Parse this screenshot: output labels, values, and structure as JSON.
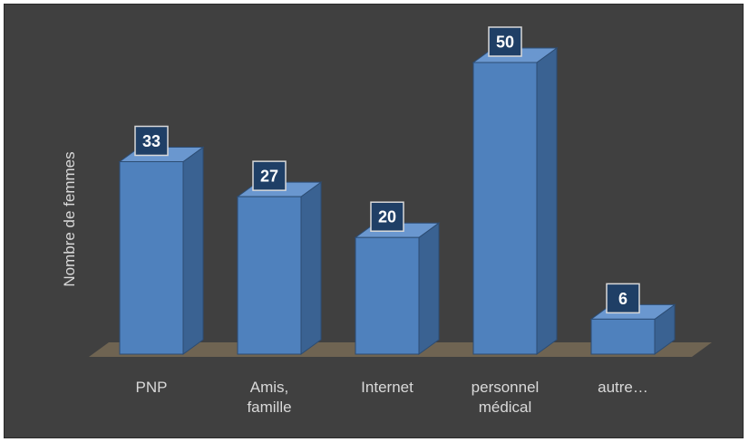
{
  "chart_data": {
    "type": "bar",
    "title": "",
    "xlabel": "",
    "ylabel": "Nombre de femmes",
    "categories": [
      [
        "PNP"
      ],
      [
        "Amis,",
        "famille"
      ],
      [
        "Internet"
      ],
      [
        "personnel",
        "médical"
      ],
      [
        "autre…"
      ]
    ],
    "values": [
      33,
      27,
      20,
      50,
      6
    ],
    "ylim": [
      0,
      50
    ],
    "grid": false,
    "legend": "none",
    "data_labels": true,
    "style": "3d-column"
  },
  "colors": {
    "background": "#404040",
    "bar_front": "#4f81bd",
    "bar_side": "#3a6292",
    "bar_top": "#6a97cf",
    "floor": "#6f6452",
    "label_box_fill": "#1f3f66",
    "label_box_border": "#d9d9d9",
    "text": "#d9d9d9"
  }
}
